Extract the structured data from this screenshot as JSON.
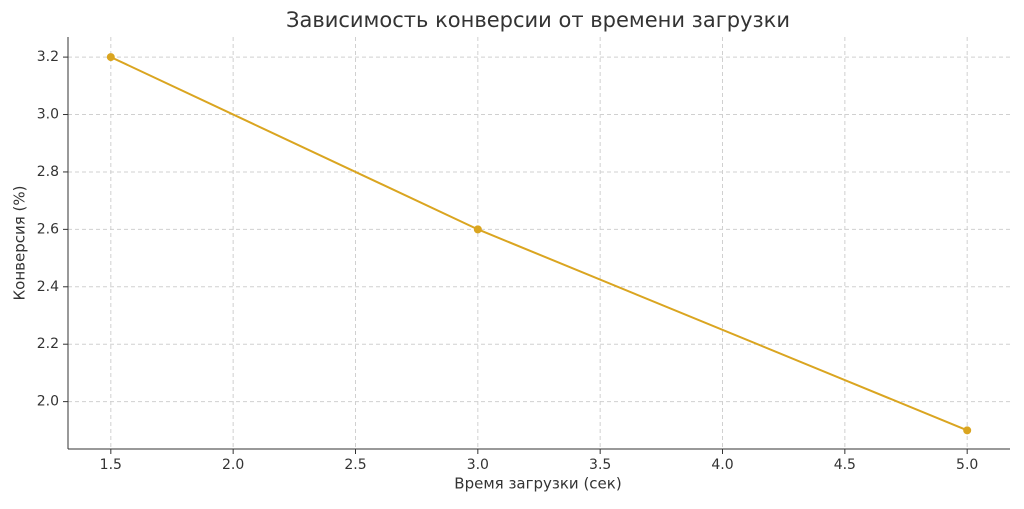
{
  "chart_data": {
    "type": "line",
    "title": "Зависимость конверсии от времени загрузки",
    "x_label": "Время загрузки (сек)",
    "y_label": "Конверсия (%)",
    "x": [
      1.5,
      3.0,
      5.0
    ],
    "series": [
      {
        "color": "#daa520",
        "values": [
          3.2,
          2.6,
          1.9
        ]
      }
    ],
    "xlim": [
      1.325,
      5.175
    ],
    "ylim": [
      1.835,
      3.27
    ],
    "xticks": [
      1.5,
      {
        "value": 2,
        "label": "2.0"
      },
      2.5,
      {
        "value": 3,
        "label": "3.0"
      },
      3.5,
      {
        "value": 4,
        "label": "4.0"
      },
      4.5,
      {
        "value": 5,
        "label": "5.0"
      }
    ],
    "yticks": [
      {
        "value": 2,
        "label": "2.0"
      },
      2.2,
      2.4,
      2.6,
      2.8,
      {
        "value": 3,
        "label": "3.0"
      },
      3.2
    ],
    "grid": true
  }
}
